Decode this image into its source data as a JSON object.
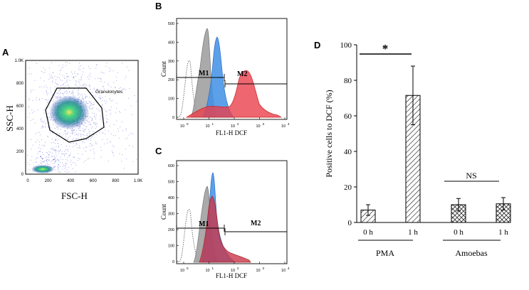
{
  "panels": {
    "a": {
      "letter": "A",
      "x_label": "FSC-H",
      "y_label": "SSC-H",
      "x_ticks": [
        "0",
        "200",
        "400",
        "600",
        "800",
        "1.0K"
      ],
      "y_ticks": [
        "0",
        "200",
        "400",
        "600",
        "800",
        "1.0K"
      ],
      "gate_label": "Granulocytes"
    },
    "b": {
      "letter": "B",
      "y_label": "Count",
      "x_label": "FL1-H DCF",
      "y_ticks": [
        "0",
        "100",
        "200",
        "300",
        "400",
        "500"
      ],
      "x_ticks": [
        "10",
        "10",
        "10",
        "10",
        "10"
      ],
      "x_tick_exponents": [
        "0",
        "1",
        "2",
        "3",
        "4"
      ],
      "marker_1": "M1",
      "marker_2": "M2"
    },
    "c": {
      "letter": "C",
      "y_label": "Count",
      "x_label": "FL1-H DCF",
      "y_ticks": [
        "0",
        "100",
        "200",
        "300",
        "400",
        "500",
        "600"
      ],
      "x_ticks": [
        "10",
        "10",
        "10",
        "10",
        "10"
      ],
      "x_tick_exponents": [
        "0",
        "1",
        "2",
        "3",
        "4"
      ],
      "marker_1": "M1",
      "marker_2": "M2"
    },
    "d": {
      "letter": "D",
      "significance_star": "*",
      "significance_ns": "NS",
      "group_labels": [
        "PMA",
        "Amoebas"
      ]
    }
  },
  "chart_data": {
    "type": "bar",
    "title": "",
    "xlabel": "",
    "ylabel": "Positive cells to DCF (%)",
    "ylim": [
      0,
      100
    ],
    "yticks": [
      0,
      20,
      40,
      60,
      80,
      100
    ],
    "categories": [
      "0 h",
      "1 h",
      "0 h",
      "1 h"
    ],
    "groups": [
      "PMA",
      "PMA",
      "Amoebas",
      "Amoebas"
    ],
    "values": [
      7,
      71.5,
      10,
      10.5
    ],
    "errors": [
      3,
      16.5,
      3.5,
      3.5
    ],
    "patterns": [
      "diagonal",
      "diagonal",
      "crosshatch",
      "crosshatch"
    ]
  },
  "colors": {
    "grey_fill": "#9b9b9b",
    "blue_fill": "#3f8fe6",
    "red_fill": "#e8404c",
    "dense_center": "#2bd06c",
    "scatter_blue": "#3a3acf"
  }
}
